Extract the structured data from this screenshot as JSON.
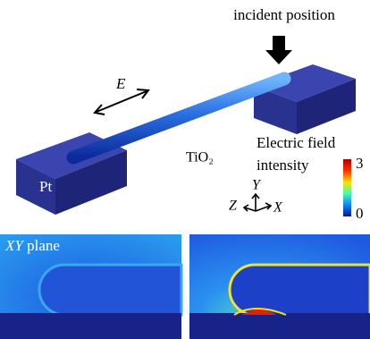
{
  "labels": {
    "incident": "incident position",
    "field": "E",
    "material": "TiO₂",
    "electrode": "Pt"
  },
  "colorbar": {
    "title": [
      "Electric field",
      "intensity"
    ],
    "max": 3,
    "min": 0
  },
  "axes": {
    "y": "Y",
    "z": "Z",
    "x": "X"
  },
  "panel": {
    "plane": "XY",
    "word": "plane"
  }
}
